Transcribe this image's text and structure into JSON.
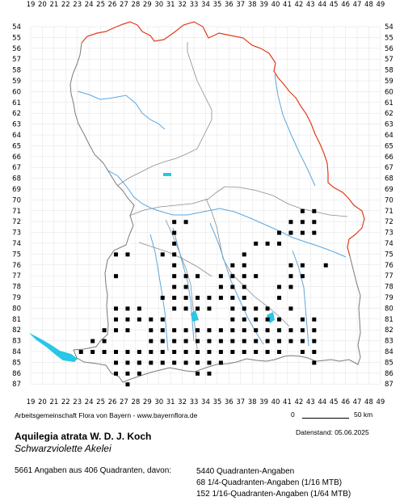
{
  "map": {
    "x_axis_labels": [
      "19",
      "20",
      "21",
      "22",
      "23",
      "24",
      "25",
      "26",
      "27",
      "28",
      "29",
      "30",
      "31",
      "32",
      "33",
      "34",
      "35",
      "36",
      "37",
      "38",
      "39",
      "40",
      "41",
      "42",
      "43",
      "44",
      "45",
      "46",
      "47",
      "48",
      "49"
    ],
    "y_axis_labels": [
      "54",
      "55",
      "56",
      "57",
      "58",
      "59",
      "60",
      "61",
      "62",
      "63",
      "64",
      "65",
      "66",
      "67",
      "68",
      "69",
      "70",
      "71",
      "72",
      "73",
      "74",
      "75",
      "76",
      "77",
      "78",
      "79",
      "80",
      "81",
      "82",
      "83",
      "84",
      "85",
      "86",
      "87"
    ],
    "colors": {
      "state_border": "#e03c1c",
      "district_border": "#8c8c8c",
      "rivers": "#5aa8e0",
      "lakes": "#29c6e6",
      "grid": "#d8d8d8",
      "occurrence": "#000000"
    },
    "occurrences": [
      [
        24,
        83
      ],
      [
        25,
        83
      ],
      [
        26,
        75
      ],
      [
        26,
        77
      ],
      [
        27,
        75
      ],
      [
        26,
        80
      ],
      [
        27,
        80
      ],
      [
        28,
        80
      ],
      [
        26,
        81
      ],
      [
        27,
        81
      ],
      [
        28,
        81
      ],
      [
        29,
        81
      ],
      [
        30,
        81
      ],
      [
        25,
        82
      ],
      [
        26,
        82
      ],
      [
        27,
        82
      ],
      [
        29,
        82
      ],
      [
        30,
        82
      ],
      [
        31,
        82
      ],
      [
        23,
        84
      ],
      [
        24,
        84
      ],
      [
        25,
        84
      ],
      [
        26,
        84
      ],
      [
        26,
        85
      ],
      [
        27,
        85
      ],
      [
        28,
        85
      ],
      [
        26,
        86
      ],
      [
        27,
        86
      ],
      [
        28,
        86
      ],
      [
        27,
        87
      ],
      [
        31,
        72
      ],
      [
        32,
        72
      ],
      [
        31,
        73
      ],
      [
        31,
        74
      ],
      [
        30,
        75
      ],
      [
        31,
        75
      ],
      [
        31,
        76
      ],
      [
        31,
        77
      ],
      [
        32,
        77
      ],
      [
        33,
        77
      ],
      [
        31,
        78
      ],
      [
        32,
        78
      ],
      [
        30,
        79
      ],
      [
        31,
        79
      ],
      [
        32,
        79
      ],
      [
        33,
        79
      ],
      [
        34,
        79
      ],
      [
        31,
        80
      ],
      [
        32,
        80
      ],
      [
        33,
        80
      ],
      [
        34,
        80
      ],
      [
        36,
        76
      ],
      [
        37,
        76
      ],
      [
        37,
        75
      ],
      [
        38,
        74
      ],
      [
        39,
        74
      ],
      [
        40,
        74
      ],
      [
        40,
        73
      ],
      [
        41,
        73
      ],
      [
        41,
        72
      ],
      [
        42,
        72
      ],
      [
        42,
        71
      ],
      [
        43,
        71
      ],
      [
        43,
        72
      ],
      [
        42,
        73
      ],
      [
        43,
        73
      ],
      [
        35,
        77
      ],
      [
        36,
        77
      ],
      [
        37,
        77
      ],
      [
        38,
        77
      ],
      [
        35,
        78
      ],
      [
        36,
        78
      ],
      [
        37,
        78
      ],
      [
        35,
        79
      ],
      [
        36,
        79
      ],
      [
        37,
        79
      ],
      [
        36,
        80
      ],
      [
        37,
        80
      ],
      [
        38,
        80
      ],
      [
        39,
        80
      ],
      [
        36,
        81
      ],
      [
        37,
        81
      ],
      [
        38,
        81
      ],
      [
        39,
        81
      ],
      [
        40,
        81
      ],
      [
        41,
        76
      ],
      [
        42,
        76
      ],
      [
        41,
        77
      ],
      [
        42,
        77
      ],
      [
        40,
        78
      ],
      [
        41,
        78
      ],
      [
        40,
        79
      ],
      [
        41,
        80
      ],
      [
        42,
        81
      ],
      [
        43,
        81
      ],
      [
        42,
        82
      ],
      [
        43,
        82
      ],
      [
        42,
        83
      ],
      [
        43,
        83
      ],
      [
        42,
        84
      ],
      [
        43,
        84
      ],
      [
        43,
        85
      ],
      [
        29,
        83
      ],
      [
        30,
        83
      ],
      [
        31,
        83
      ],
      [
        32,
        83
      ],
      [
        33,
        83
      ],
      [
        34,
        83
      ],
      [
        35,
        83
      ],
      [
        36,
        83
      ],
      [
        37,
        83
      ],
      [
        38,
        83
      ],
      [
        39,
        83
      ],
      [
        40,
        83
      ],
      [
        41,
        83
      ],
      [
        27,
        84
      ],
      [
        28,
        84
      ],
      [
        29,
        84
      ],
      [
        30,
        84
      ],
      [
        31,
        84
      ],
      [
        32,
        84
      ],
      [
        33,
        84
      ],
      [
        34,
        84
      ],
      [
        35,
        84
      ],
      [
        36,
        84
      ],
      [
        37,
        84
      ],
      [
        38,
        84
      ],
      [
        39,
        84
      ],
      [
        40,
        84
      ],
      [
        28,
        85
      ],
      [
        29,
        85
      ],
      [
        30,
        85
      ],
      [
        31,
        85
      ],
      [
        32,
        85
      ],
      [
        33,
        85
      ],
      [
        34,
        85
      ],
      [
        35,
        85
      ],
      [
        33,
        86
      ],
      [
        34,
        86
      ],
      [
        32,
        82
      ],
      [
        33,
        82
      ],
      [
        34,
        82
      ],
      [
        35,
        82
      ],
      [
        36,
        82
      ],
      [
        37,
        82
      ],
      [
        38,
        82
      ],
      [
        39,
        82
      ],
      [
        40,
        82
      ],
      [
        41,
        82
      ],
      [
        44,
        76
      ]
    ]
  },
  "credit": "Arbeitsgemeinschaft Flora von Bayern - www.bayernflora.de",
  "date": "Datenstand: 05.06.2025",
  "scale": {
    "start": "0",
    "end": "50 km"
  },
  "species": "Aquilegia atrata W. D. J. Koch",
  "common_name": "Schwarzviolette Akelei",
  "summary": "5661 Angaben aus 406 Quadranten, davon:",
  "breakdown": [
    "5440 Quadranten-Angaben",
    "68 1/4-Quadranten-Angaben (1/16 MTB)",
    "152 1/16-Quadranten-Angaben (1/64 MTB)"
  ]
}
